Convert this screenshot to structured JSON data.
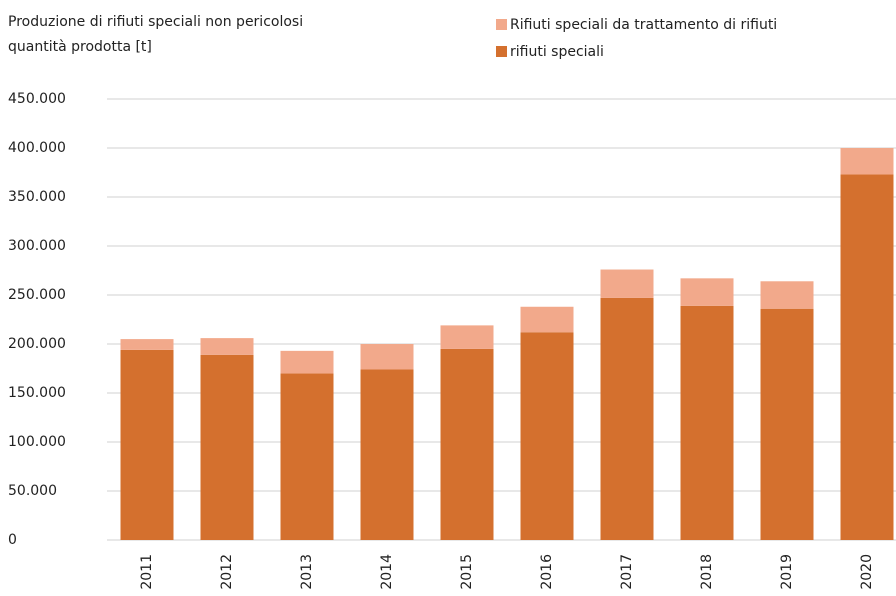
{
  "chart_data": {
    "type": "stacked_bar",
    "title": [
      "Produzione di rifiuti speciali non pericolosi",
      "quantità prodotta [t]"
    ],
    "categories": [
      "2011",
      "2012",
      "2013",
      "2014",
      "2015",
      "2016",
      "2017",
      "2018",
      "2019",
      "2020"
    ],
    "series": [
      {
        "name": "Rifiuti speciali da trattamento di rifiuti",
        "color": "#f2a98b",
        "values": [
          11000,
          17000,
          23000,
          26000,
          24000,
          26000,
          29000,
          28000,
          28000,
          27000
        ]
      },
      {
        "name": "rifiuti speciali",
        "color": "#d4702e",
        "values": [
          194000,
          189000,
          170000,
          174000,
          195000,
          212000,
          247000,
          239000,
          236000,
          373000
        ]
      }
    ],
    "ylim": [
      0,
      450000
    ],
    "yticks": [
      0,
      {
        "value": 50000,
        "label": "50.000"
      },
      {
        "value": 100000,
        "label": "100.000"
      },
      {
        "value": 150000,
        "label": "150.000"
      },
      {
        "value": 200000,
        "label": "200.000"
      },
      {
        "value": 250000,
        "label": "250.000"
      },
      {
        "value": 300000,
        "label": "300.000"
      },
      {
        "value": 350000,
        "label": "350.000"
      },
      {
        "value": 400000,
        "label": "400.000"
      },
      {
        "value": 450000,
        "label": "450.000"
      }
    ],
    "grid": true
  }
}
